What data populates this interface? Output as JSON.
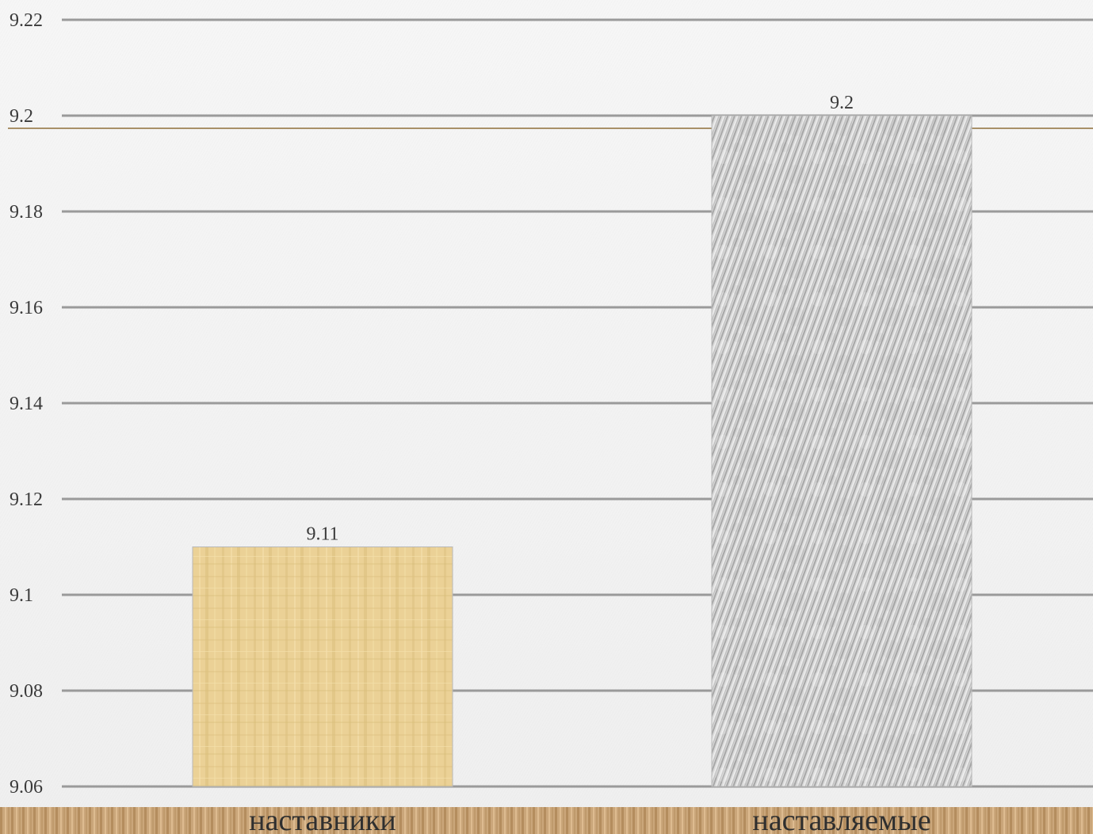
{
  "chart_data": {
    "type": "bar",
    "categories": [
      "наставники",
      "наставляемые"
    ],
    "values": [
      9.11,
      9.2
    ],
    "data_labels": [
      "9.11",
      "9.2"
    ],
    "y_ticks": [
      "9.06",
      "9.08",
      "9.1",
      "9.12",
      "9.14",
      "9.16",
      "9.18",
      "9.2",
      "9.22"
    ],
    "ylim": [
      9.06,
      9.22
    ],
    "grid": true,
    "legend": "none",
    "colors": {
      "bar_1": "#e9cf8f",
      "bar_2": "#c9c9c9",
      "grid": "#9a9a9a",
      "accent_line": "#a89068",
      "footer_band": "#c9a57a"
    }
  }
}
